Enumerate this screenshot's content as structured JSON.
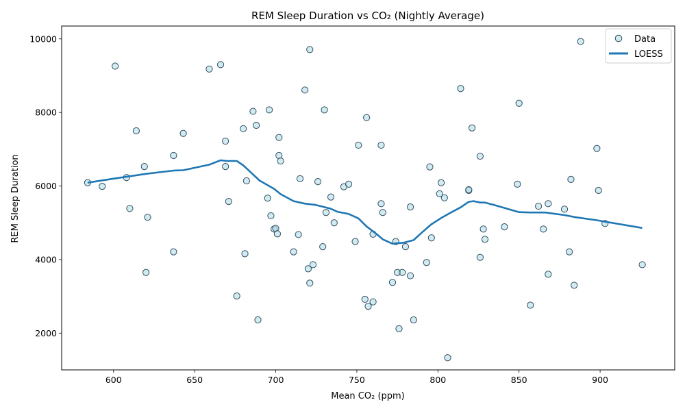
{
  "chart_data": {
    "type": "scatter",
    "title": "REM Sleep Duration vs CO₂ (Nightly Average)",
    "xlabel": "Mean CO₂ (ppm)",
    "ylabel": "REM Sleep Duration",
    "xlim": [
      568,
      946
    ],
    "ylim": [
      1000,
      10350
    ],
    "xticks": [
      600,
      650,
      700,
      750,
      800,
      850,
      900
    ],
    "yticks": [
      2000,
      4000,
      6000,
      8000,
      10000
    ],
    "grid": false,
    "legend_position": "top-right",
    "colors": {
      "point_fill": "#add8e6",
      "point_edge": "#2f4f5f",
      "line": "#1f77b4"
    },
    "series": [
      {
        "name": "Data",
        "kind": "scatter",
        "points": [
          [
            584,
            6090
          ],
          [
            593,
            5990
          ],
          [
            601,
            9260
          ],
          [
            608,
            6230
          ],
          [
            610,
            5390
          ],
          [
            614,
            7500
          ],
          [
            619,
            6530
          ],
          [
            620,
            3650
          ],
          [
            621,
            5150
          ],
          [
            637,
            6830
          ],
          [
            637,
            4210
          ],
          [
            643,
            7430
          ],
          [
            659,
            9180
          ],
          [
            666,
            9300
          ],
          [
            669,
            7220
          ],
          [
            669,
            6530
          ],
          [
            671,
            5580
          ],
          [
            676,
            3010
          ],
          [
            680,
            7560
          ],
          [
            681,
            4160
          ],
          [
            682,
            6140
          ],
          [
            686,
            8030
          ],
          [
            688,
            7650
          ],
          [
            689,
            2360
          ],
          [
            695,
            5670
          ],
          [
            696,
            8070
          ],
          [
            697,
            5190
          ],
          [
            699,
            4830
          ],
          [
            700,
            4850
          ],
          [
            701,
            4700
          ],
          [
            702,
            7320
          ],
          [
            702,
            6830
          ],
          [
            703,
            6680
          ],
          [
            711,
            4210
          ],
          [
            714,
            4680
          ],
          [
            715,
            6200
          ],
          [
            718,
            8610
          ],
          [
            720,
            3750
          ],
          [
            721,
            9710
          ],
          [
            721,
            3360
          ],
          [
            723,
            3860
          ],
          [
            726,
            6120
          ],
          [
            729,
            4350
          ],
          [
            730,
            8070
          ],
          [
            731,
            5280
          ],
          [
            734,
            5700
          ],
          [
            736,
            5000
          ],
          [
            742,
            5980
          ],
          [
            745,
            6050
          ],
          [
            749,
            4490
          ],
          [
            751,
            7110
          ],
          [
            755,
            2920
          ],
          [
            756,
            7860
          ],
          [
            757,
            2730
          ],
          [
            760,
            2850
          ],
          [
            760,
            4690
          ],
          [
            765,
            7110
          ],
          [
            765,
            5520
          ],
          [
            766,
            5280
          ],
          [
            772,
            3380
          ],
          [
            774,
            4490
          ],
          [
            775,
            3650
          ],
          [
            776,
            2120
          ],
          [
            778,
            3650
          ],
          [
            780,
            4350
          ],
          [
            783,
            5430
          ],
          [
            783,
            3560
          ],
          [
            785,
            2360
          ],
          [
            793,
            3920
          ],
          [
            795,
            6520
          ],
          [
            796,
            4590
          ],
          [
            801,
            5790
          ],
          [
            802,
            6090
          ],
          [
            804,
            5680
          ],
          [
            806,
            1330
          ],
          [
            814,
            8650
          ],
          [
            819,
            5880
          ],
          [
            819,
            5900
          ],
          [
            821,
            7580
          ],
          [
            826,
            6810
          ],
          [
            826,
            4060
          ],
          [
            828,
            4830
          ],
          [
            829,
            4550
          ],
          [
            841,
            4890
          ],
          [
            849,
            6050
          ],
          [
            850,
            8250
          ],
          [
            857,
            2760
          ],
          [
            862,
            5450
          ],
          [
            865,
            4830
          ],
          [
            868,
            5520
          ],
          [
            868,
            3600
          ],
          [
            878,
            5370
          ],
          [
            881,
            4210
          ],
          [
            882,
            6180
          ],
          [
            884,
            3300
          ],
          [
            888,
            9930
          ],
          [
            898,
            7020
          ],
          [
            899,
            5880
          ],
          [
            903,
            4980
          ],
          [
            926,
            3860
          ]
        ]
      },
      {
        "name": "LOESS",
        "kind": "line",
        "points": [
          [
            584,
            6090
          ],
          [
            600,
            6200
          ],
          [
            620,
            6330
          ],
          [
            637,
            6420
          ],
          [
            643,
            6430
          ],
          [
            659,
            6580
          ],
          [
            666,
            6700
          ],
          [
            670,
            6680
          ],
          [
            676,
            6680
          ],
          [
            680,
            6560
          ],
          [
            690,
            6150
          ],
          [
            699,
            5920
          ],
          [
            703,
            5780
          ],
          [
            711,
            5590
          ],
          [
            718,
            5520
          ],
          [
            724,
            5490
          ],
          [
            728,
            5450
          ],
          [
            734,
            5380
          ],
          [
            738,
            5300
          ],
          [
            745,
            5240
          ],
          [
            751,
            5120
          ],
          [
            756,
            4900
          ],
          [
            762,
            4700
          ],
          [
            766,
            4550
          ],
          [
            772,
            4430
          ],
          [
            779,
            4460
          ],
          [
            785,
            4530
          ],
          [
            790,
            4730
          ],
          [
            796,
            4960
          ],
          [
            802,
            5130
          ],
          [
            808,
            5280
          ],
          [
            814,
            5420
          ],
          [
            819,
            5570
          ],
          [
            822,
            5590
          ],
          [
            826,
            5550
          ],
          [
            829,
            5550
          ],
          [
            835,
            5480
          ],
          [
            842,
            5390
          ],
          [
            850,
            5290
          ],
          [
            857,
            5280
          ],
          [
            866,
            5280
          ],
          [
            878,
            5210
          ],
          [
            885,
            5150
          ],
          [
            898,
            5070
          ],
          [
            903,
            5030
          ],
          [
            926,
            4860
          ]
        ]
      }
    ]
  }
}
